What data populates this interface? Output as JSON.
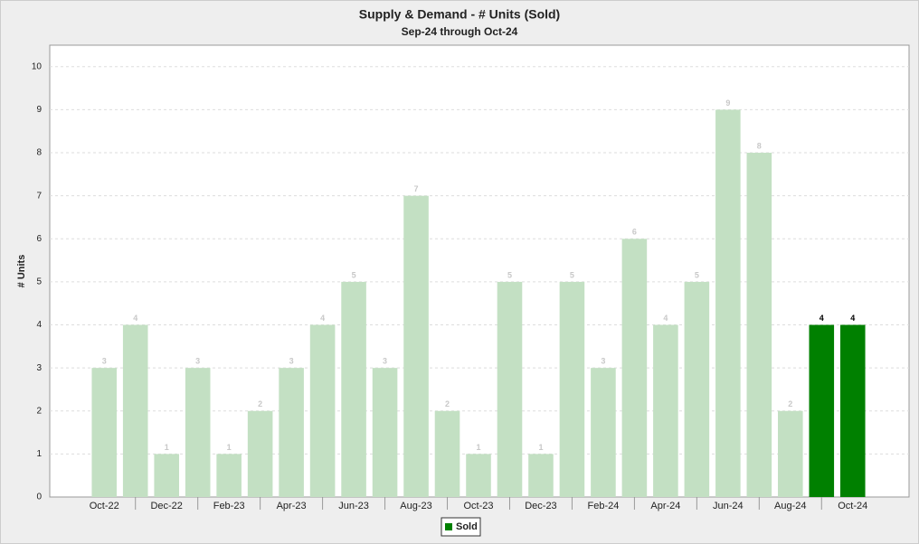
{
  "chart_data": {
    "type": "bar",
    "title": "Supply & Demand - # Units (Sold)",
    "subtitle": "Sep-24 through Oct-24",
    "ylabel": "# Units",
    "categories": [
      "Oct-22",
      null,
      "Dec-22",
      null,
      "Feb-23",
      null,
      "Apr-23",
      null,
      "Jun-23",
      null,
      "Aug-23",
      null,
      "Oct-23",
      null,
      "Dec-23",
      null,
      "Feb-24",
      null,
      "Apr-24",
      null,
      "Jun-24",
      null,
      "Aug-24",
      null,
      "Oct-24"
    ],
    "series": [
      {
        "name": "Sold",
        "color": "#008000",
        "values": [
          3,
          4,
          1,
          3,
          1,
          2,
          3,
          4,
          5,
          3,
          7,
          2,
          1,
          5,
          1,
          5,
          3,
          6,
          4,
          5,
          9,
          8,
          2,
          4,
          4
        ],
        "colors": [
          "#c3e0c3",
          "#c3e0c3",
          "#c3e0c3",
          "#c3e0c3",
          "#c3e0c3",
          "#c3e0c3",
          "#c3e0c3",
          "#c3e0c3",
          "#c3e0c3",
          "#c3e0c3",
          "#c3e0c3",
          "#c3e0c3",
          "#c3e0c3",
          "#c3e0c3",
          "#c3e0c3",
          "#c3e0c3",
          "#c3e0c3",
          "#c3e0c3",
          "#c3e0c3",
          "#c3e0c3",
          "#c3e0c3",
          "#c3e0c3",
          "#c3e0c3",
          "#008000",
          "#008000"
        ]
      }
    ],
    "ylim": [
      0,
      10.5
    ],
    "yticks": [
      0,
      1,
      2,
      3,
      4,
      5,
      6,
      7,
      8,
      9,
      10
    ],
    "grid": true,
    "legend": "bottom"
  }
}
